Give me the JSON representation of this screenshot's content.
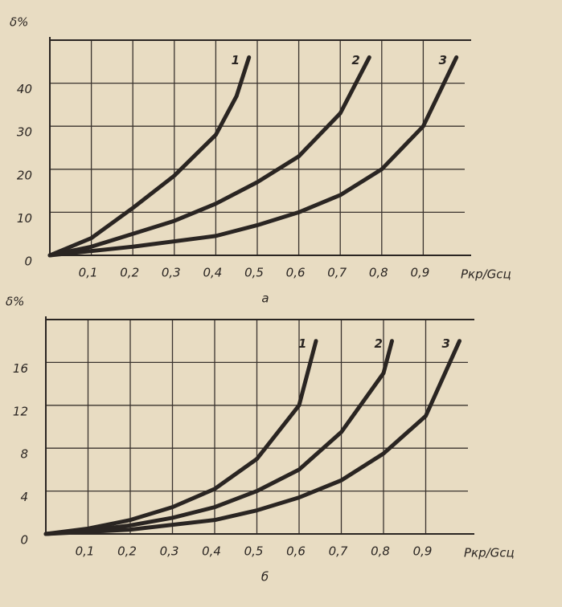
{
  "chart_data": [
    {
      "type": "line",
      "ylabel": "δ%",
      "xlabel": "Pкр/Gсц",
      "caption": "а",
      "xlim": [
        0,
        1
      ],
      "ylim": [
        0,
        50
      ],
      "xticks": [
        {
          "value": 0.1,
          "label": "0,1"
        },
        {
          "value": 0.2,
          "label": "0,2"
        },
        {
          "value": 0.3,
          "label": "0,3"
        },
        {
          "value": 0.4,
          "label": "0,4"
        },
        {
          "value": 0.5,
          "label": "0,5"
        },
        {
          "value": 0.6,
          "label": "0,6"
        },
        {
          "value": 0.7,
          "label": "0,7"
        },
        {
          "value": 0.8,
          "label": "0,8"
        },
        {
          "value": 0.9,
          "label": "0,9"
        }
      ],
      "yticks": [
        0,
        10,
        20,
        30,
        40
      ],
      "grid": true,
      "series": [
        {
          "name": "1",
          "color": "#2a2522",
          "x": [
            0,
            0.1,
            0.2,
            0.3,
            0.4,
            0.45,
            0.48
          ],
          "values": [
            0,
            4,
            11,
            18.5,
            28,
            37,
            46
          ]
        },
        {
          "name": "2",
          "color": "#2a2522",
          "x": [
            0,
            0.1,
            0.2,
            0.3,
            0.4,
            0.5,
            0.6,
            0.7,
            0.77
          ],
          "values": [
            0,
            2,
            5,
            8,
            12,
            17,
            23,
            33,
            46
          ]
        },
        {
          "name": "3",
          "color": "#2a2522",
          "x": [
            0,
            0.1,
            0.2,
            0.4,
            0.5,
            0.6,
            0.7,
            0.8,
            0.9,
            0.98
          ],
          "values": [
            0,
            1,
            2,
            4.5,
            7,
            10,
            14,
            20,
            30,
            46
          ]
        }
      ]
    },
    {
      "type": "line",
      "ylabel": "δ%",
      "xlabel": "Pкр/Gсц",
      "caption": "б",
      "xlim": [
        0,
        1
      ],
      "ylim": [
        0,
        20
      ],
      "xticks": [
        {
          "value": 0.1,
          "label": "0,1"
        },
        {
          "value": 0.2,
          "label": "0,2"
        },
        {
          "value": 0.3,
          "label": "0,3"
        },
        {
          "value": 0.4,
          "label": "0,4"
        },
        {
          "value": 0.5,
          "label": "0,5"
        },
        {
          "value": 0.6,
          "label": "0,6"
        },
        {
          "value": 0.7,
          "label": "0,7"
        },
        {
          "value": 0.8,
          "label": "0,8"
        },
        {
          "value": 0.9,
          "label": "0,9"
        }
      ],
      "yticks": [
        0,
        4,
        8,
        12,
        16
      ],
      "grid": true,
      "series": [
        {
          "name": "1",
          "color": "#2a2522",
          "x": [
            0,
            0.1,
            0.2,
            0.3,
            0.4,
            0.5,
            0.6,
            0.64
          ],
          "values": [
            0,
            0.5,
            1.3,
            2.5,
            4.2,
            7,
            12,
            18
          ]
        },
        {
          "name": "2",
          "color": "#2a2522",
          "x": [
            0,
            0.1,
            0.2,
            0.3,
            0.4,
            0.5,
            0.6,
            0.7,
            0.8,
            0.82
          ],
          "values": [
            0,
            0.3,
            0.8,
            1.5,
            2.5,
            4,
            6,
            9.5,
            15,
            18
          ]
        },
        {
          "name": "3",
          "color": "#2a2522",
          "x": [
            0,
            0.2,
            0.4,
            0.5,
            0.6,
            0.7,
            0.8,
            0.9,
            0.98
          ],
          "values": [
            0,
            0.4,
            1.3,
            2.2,
            3.4,
            5,
            7.5,
            11,
            18
          ]
        }
      ]
    }
  ]
}
